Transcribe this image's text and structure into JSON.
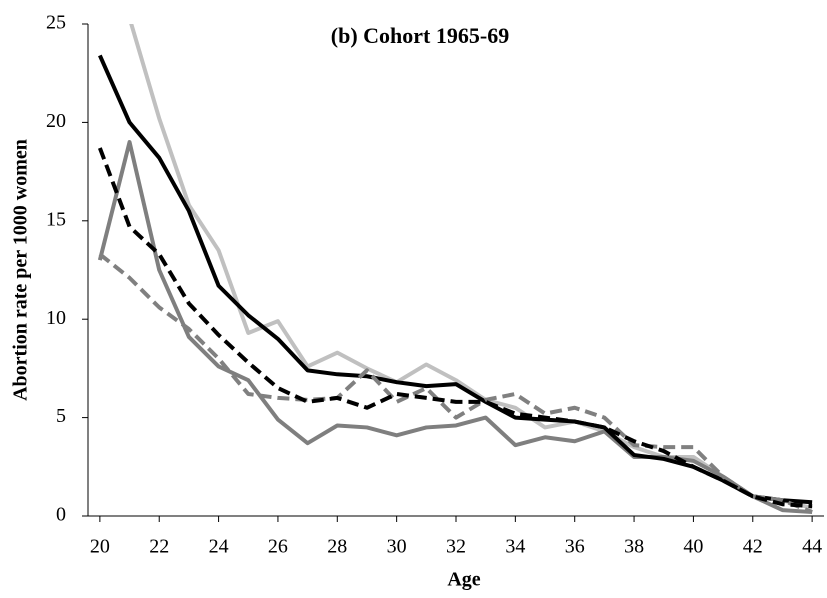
{
  "chart_data": {
    "type": "line",
    "title": "(b) Cohort 1965-69",
    "x_label": "Age",
    "y_label": "Abortion rate per 1000 women",
    "x": [
      20,
      21,
      22,
      23,
      24,
      25,
      26,
      27,
      28,
      29,
      30,
      31,
      32,
      33,
      34,
      35,
      36,
      37,
      38,
      39,
      40,
      41,
      42,
      43,
      44
    ],
    "series": [
      {
        "color": "#c0c0c0",
        "dashed": false,
        "values": [
          null,
          25.3,
          20.2,
          15.8,
          13.5,
          9.3,
          9.9,
          7.6,
          8.3,
          7.5,
          6.8,
          7.7,
          6.9,
          5.9,
          5.5,
          4.5,
          4.8,
          4.3,
          3.5,
          3.0,
          3.0,
          2.0,
          1.0,
          0.8,
          0.4
        ]
      },
      {
        "color": "#7f7f7f",
        "dashed": false,
        "values": [
          13.0,
          19.0,
          12.5,
          9.1,
          7.6,
          6.9,
          4.9,
          3.7,
          4.6,
          4.5,
          4.1,
          4.5,
          4.6,
          5.0,
          3.6,
          4.0,
          3.8,
          4.3,
          3.0,
          3.0,
          2.8,
          2.0,
          1.0,
          0.3,
          0.2
        ]
      },
      {
        "color": "#000000",
        "dashed": false,
        "values": [
          23.4,
          20.0,
          18.2,
          15.5,
          11.7,
          10.2,
          9.0,
          7.4,
          7.2,
          7.1,
          6.8,
          6.6,
          6.7,
          5.8,
          5.0,
          4.9,
          4.8,
          4.5,
          3.1,
          2.9,
          2.5,
          1.8,
          1.0,
          0.8,
          0.7
        ]
      },
      {
        "color": "#808080",
        "dashed": true,
        "values": [
          13.3,
          12.1,
          10.6,
          9.5,
          8.0,
          6.2,
          6.0,
          5.9,
          6.0,
          7.4,
          5.8,
          6.5,
          5.0,
          5.9,
          6.2,
          5.2,
          5.5,
          5.0,
          3.6,
          3.5,
          3.5,
          2.0,
          1.0,
          0.8,
          0.2
        ]
      },
      {
        "color": "#000000",
        "dashed": true,
        "values": [
          18.7,
          14.7,
          13.3,
          10.8,
          9.2,
          7.8,
          6.5,
          5.8,
          6.0,
          5.5,
          6.2,
          6.0,
          5.8,
          5.8,
          5.2,
          5.0,
          4.8,
          4.5,
          3.8,
          3.3,
          2.5,
          1.8,
          1.0,
          0.6,
          0.5
        ]
      }
    ],
    "xlim": [
      19.6,
      44.4
    ],
    "ylim": [
      0,
      25
    ],
    "xticks": [
      20,
      22,
      24,
      26,
      28,
      30,
      32,
      34,
      36,
      38,
      40,
      42,
      44
    ],
    "yticks": [
      0,
      5,
      10,
      15,
      20,
      25
    ]
  }
}
